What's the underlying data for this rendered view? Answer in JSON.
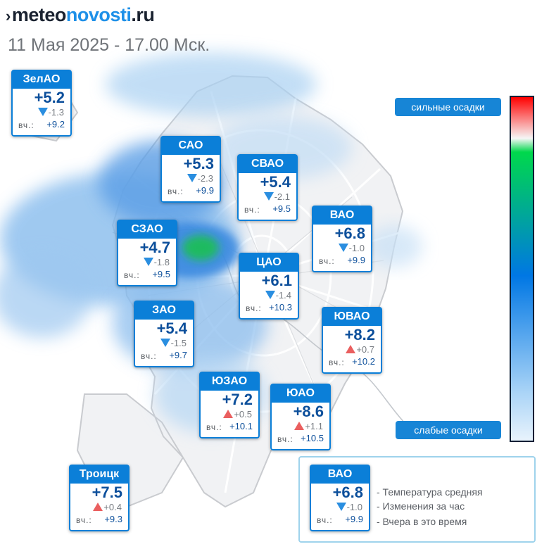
{
  "header": {
    "logo_mark": "›",
    "logo_part1": "meteo",
    "logo_part2": "novosti",
    "logo_part3": ".ru",
    "datetime": "11 Мая 2025 - 17.00 Мск."
  },
  "districts": [
    {
      "name": "ЗелАО",
      "temp": "+5.2",
      "change_dir": "down",
      "change": "-1.3",
      "yesterday_label": "вч.:",
      "yesterday": "+9.2"
    },
    {
      "name": "САО",
      "temp": "+5.3",
      "change_dir": "down",
      "change": "-2.3",
      "yesterday_label": "вч.:",
      "yesterday": "+9.9"
    },
    {
      "name": "СВАО",
      "temp": "+5.4",
      "change_dir": "down",
      "change": "-2.1",
      "yesterday_label": "вч.:",
      "yesterday": "+9.5"
    },
    {
      "name": "ВАО",
      "temp": "+6.8",
      "change_dir": "down",
      "change": "-1.0",
      "yesterday_label": "вч.:",
      "yesterday": "+9.9"
    },
    {
      "name": "СЗАО",
      "temp": "+4.7",
      "change_dir": "down",
      "change": "-1.8",
      "yesterday_label": "вч.:",
      "yesterday": "+9.5"
    },
    {
      "name": "ЦАО",
      "temp": "+6.1",
      "change_dir": "down",
      "change": "-1.4",
      "yesterday_label": "вч.:",
      "yesterday": "+10.3"
    },
    {
      "name": "ЗАО",
      "temp": "+5.4",
      "change_dir": "down",
      "change": "-1.5",
      "yesterday_label": "вч.:",
      "yesterday": "+9.7"
    },
    {
      "name": "ЮВАО",
      "temp": "+8.2",
      "change_dir": "up",
      "change": "+0.7",
      "yesterday_label": "вч.:",
      "yesterday": "+10.2"
    },
    {
      "name": "ЮЗАО",
      "temp": "+7.2",
      "change_dir": "up",
      "change": "+0.5",
      "yesterday_label": "вч.:",
      "yesterday": "+10.1"
    },
    {
      "name": "ЮАО",
      "temp": "+8.6",
      "change_dir": "up",
      "change": "+1.1",
      "yesterday_label": "вч.:",
      "yesterday": "+10.5"
    },
    {
      "name": "Троицк",
      "temp": "+7.5",
      "change_dir": "up",
      "change": "+0.4",
      "yesterday_label": "вч.:",
      "yesterday": "+9.3"
    }
  ],
  "legend": {
    "example": {
      "name": "ВАО",
      "temp": "+6.8",
      "change_dir": "down",
      "change": "-1.0",
      "yesterday_label": "вч.:",
      "yesterday": "+9.9"
    },
    "line1": "- Температура средняя",
    "line2": "- Изменения за час",
    "line3": "- Вчера в это время"
  },
  "scale": {
    "top_label": "сильные осадки",
    "bottom_label": "слабые осадки",
    "colors": [
      "#ff0000",
      "#f6f6f6",
      "#00d84c",
      "#0077e4",
      "#aad4f7",
      "#e8f3fc"
    ]
  },
  "colors": {
    "card_header": "#0b7fd8",
    "temp_text": "#0c4f9b",
    "trend_down": "#2a8ee0",
    "trend_up": "#ea5f5f",
    "precip_light": "#9ecbf2",
    "precip_medium": "#2f86df",
    "precip_heavy": "#19c05a"
  }
}
